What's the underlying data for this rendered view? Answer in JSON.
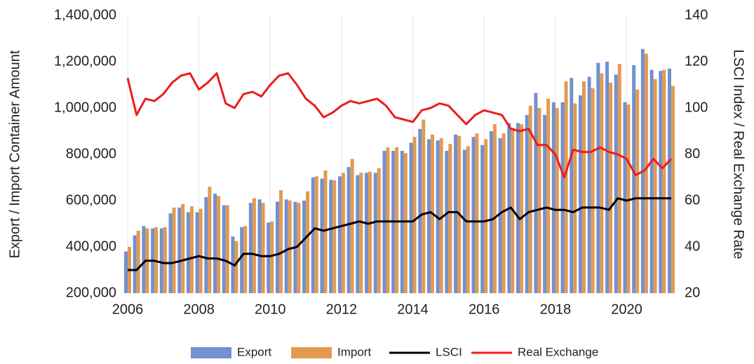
{
  "chart_data": {
    "type": "bar",
    "y_label": "Export / Import Container Amount",
    "y2_label": "LSCI Index / Real Exchange Rate",
    "categories": [
      "2006",
      null,
      null,
      null,
      null,
      null,
      null,
      null,
      "2008",
      null,
      null,
      null,
      null,
      null,
      null,
      null,
      "2010",
      null,
      null,
      null,
      null,
      null,
      null,
      null,
      "2012",
      null,
      null,
      null,
      null,
      null,
      null,
      null,
      "2014",
      null,
      null,
      null,
      null,
      null,
      null,
      null,
      "2016",
      null,
      null,
      null,
      null,
      null,
      null,
      null,
      "2018",
      null,
      null,
      null,
      null,
      null,
      null,
      null,
      "2020",
      null,
      null,
      null,
      null,
      null
    ],
    "series": [
      {
        "name": "Export",
        "type": "bar",
        "color": "#7191cf",
        "values": [
          380000,
          450000,
          490000,
          480000,
          480000,
          545000,
          570000,
          550000,
          550000,
          615000,
          630000,
          580000,
          445000,
          485000,
          590000,
          605000,
          505000,
          595000,
          605000,
          595000,
          600000,
          700000,
          695000,
          690000,
          705000,
          745000,
          710000,
          720000,
          720000,
          815000,
          815000,
          815000,
          850000,
          910000,
          865000,
          860000,
          815000,
          885000,
          820000,
          875000,
          840000,
          900000,
          870000,
          935000,
          935000,
          970000,
          1065000,
          970000,
          1025000,
          1025000,
          1130000,
          1055000,
          1135000,
          1195000,
          1200000,
          1145000,
          1025000,
          1185000,
          1255000,
          1165000,
          1160000,
          1170000
        ]
      },
      {
        "name": "Import",
        "type": "bar",
        "color": "#e39a50",
        "values": [
          400000,
          470000,
          480000,
          485000,
          485000,
          570000,
          585000,
          575000,
          565000,
          660000,
          620000,
          580000,
          425000,
          490000,
          610000,
          590000,
          510000,
          645000,
          600000,
          590000,
          640000,
          705000,
          730000,
          688000,
          720000,
          780000,
          720000,
          725000,
          740000,
          830000,
          830000,
          805000,
          875000,
          950000,
          885000,
          870000,
          845000,
          880000,
          835000,
          890000,
          865000,
          930000,
          890000,
          915000,
          930000,
          1010000,
          1000000,
          1040000,
          1000000,
          1115000,
          1020000,
          1115000,
          1085000,
          1150000,
          1110000,
          1190000,
          1015000,
          1080000,
          1235000,
          1125000,
          1165000,
          1095000
        ]
      },
      {
        "name": "LSCI",
        "type": "line",
        "axis": "y2",
        "color": "#000000",
        "values": [
          30,
          30,
          34,
          34,
          33,
          33,
          34,
          35,
          36,
          35,
          35,
          34,
          32,
          37,
          37,
          36,
          36,
          37,
          39,
          40,
          44,
          48,
          47,
          48,
          49,
          50,
          51,
          50,
          51,
          51,
          51,
          51,
          51,
          54,
          55,
          52,
          55,
          55,
          51,
          51,
          51,
          52,
          55,
          57,
          52,
          55,
          56,
          57,
          56,
          56,
          55,
          57,
          57,
          57,
          56,
          61,
          60,
          61,
          61,
          61,
          61,
          61
        ]
      },
      {
        "name": "Real Exchange",
        "type": "line",
        "axis": "y2",
        "color": "#ee1c1c",
        "values": [
          113,
          97,
          104,
          103,
          106,
          111,
          114,
          115,
          108,
          111,
          115,
          102,
          100,
          106,
          107,
          105,
          110,
          114,
          115,
          110,
          104,
          101,
          96,
          98,
          101,
          103,
          102,
          103,
          104,
          101,
          96,
          95,
          94,
          99,
          100,
          102,
          101,
          97,
          93,
          97,
          99,
          98,
          97,
          91,
          90,
          91,
          84,
          84,
          80,
          70,
          82,
          81,
          81,
          83,
          81,
          80,
          78,
          71,
          73,
          78,
          74,
          78
        ]
      }
    ],
    "ylim": [
      200000,
      1400000
    ],
    "yticks": [
      {
        "value": 200000,
        "label": "200,000"
      },
      {
        "value": 400000,
        "label": "400,000"
      },
      {
        "value": 600000,
        "label": "600,000"
      },
      {
        "value": 800000,
        "label": "800,000"
      },
      {
        "value": 1000000,
        "label": "1,000,000"
      },
      {
        "value": 1200000,
        "label": "1,200,000"
      },
      {
        "value": 1400000,
        "label": "1,400,000"
      }
    ],
    "y2lim": [
      20,
      140
    ],
    "y2ticks": [
      20,
      40,
      60,
      80,
      100,
      120,
      140
    ],
    "grid": true,
    "legend": "bottom"
  }
}
